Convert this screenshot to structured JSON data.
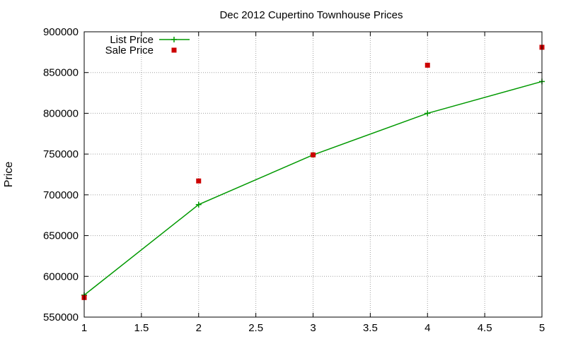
{
  "chart_data": {
    "type": "line",
    "title": "Dec 2012 Cupertino Townhouse Prices",
    "xlabel": "",
    "ylabel": "Price",
    "xlim": [
      1,
      5
    ],
    "ylim": [
      550000,
      900000
    ],
    "xticks": [
      "1",
      "1.5",
      "2",
      "2.5",
      "3",
      "3.5",
      "4",
      "4.5",
      "5"
    ],
    "yticks": [
      "550000",
      "600000",
      "650000",
      "700000",
      "750000",
      "800000",
      "850000",
      "900000"
    ],
    "grid": true,
    "legend_position": "top-left",
    "series": [
      {
        "name": "List Price",
        "style": "lines+points",
        "marker": "plus",
        "color": "#009900",
        "x": [
          1,
          2,
          3,
          4,
          5
        ],
        "y": [
          577000,
          688000,
          749000,
          800000,
          839000
        ]
      },
      {
        "name": "Sale Price",
        "style": "points",
        "marker": "square",
        "color": "#cc0000",
        "x": [
          1,
          2,
          3,
          4,
          5
        ],
        "y": [
          574000,
          717000,
          749000,
          859000,
          881000
        ]
      }
    ]
  }
}
